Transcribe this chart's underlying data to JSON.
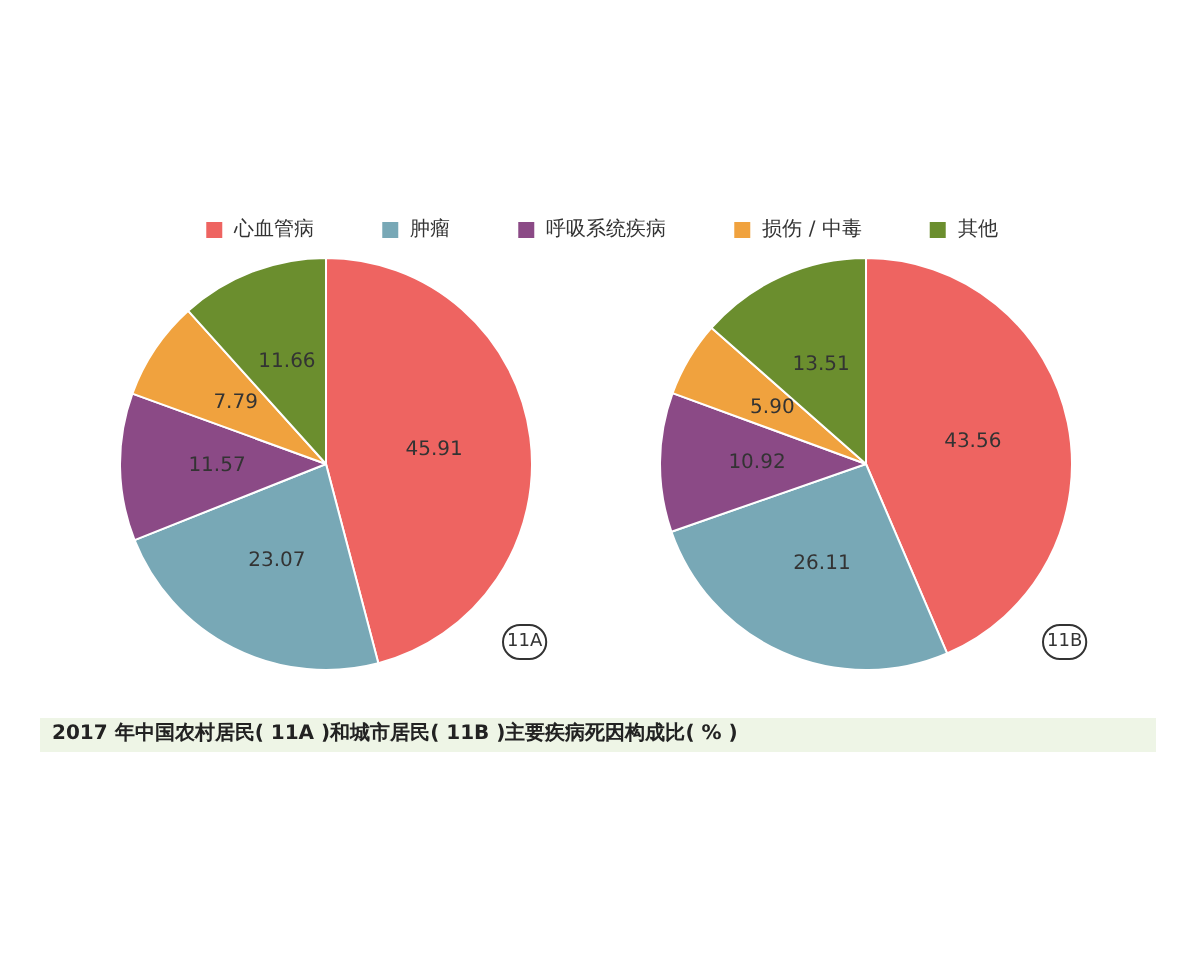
{
  "chart_data": {
    "type": "pie",
    "categories": [
      "心血管病",
      "肿瘤",
      "呼吸系统疾病",
      "损伤 / 中毒",
      "其他"
    ],
    "colors": [
      "#ee6461",
      "#78a8b6",
      "#8b4a86",
      "#f0a23e",
      "#6b8e2e"
    ],
    "legend": "top",
    "series": [
      {
        "name": "11A",
        "values": [
          45.91,
          23.07,
          11.57,
          7.79,
          11.66
        ],
        "value_labels": [
          "45.91",
          "23.07",
          "11.57",
          "7.79",
          "11.66"
        ]
      },
      {
        "name": "11B",
        "values": [
          43.56,
          26.11,
          10.92,
          5.9,
          13.51
        ],
        "value_labels": [
          "43.56",
          "26.11",
          "10.92",
          "5.90",
          "13.51"
        ]
      }
    ],
    "annotations": [
      "2017 年中国农村居民( 11A )和城市居民( 11B )主要疾病死因构成比( % )"
    ]
  }
}
